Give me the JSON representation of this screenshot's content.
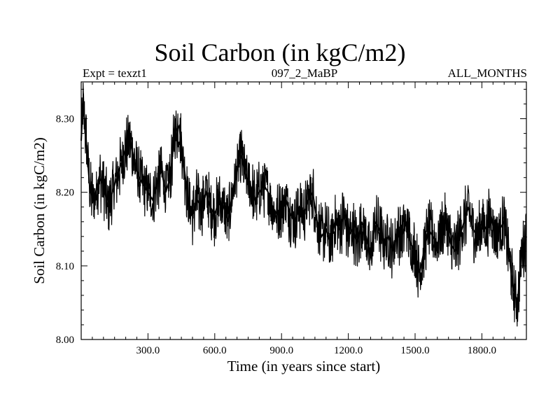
{
  "header": {
    "title": "Soil Carbon (in kgC/m2)",
    "expt": "Expt = texzt1",
    "period": "097_2_MaBP",
    "months": "ALL_MONTHS"
  },
  "chart_data": {
    "type": "line",
    "title": "Soil Carbon (in kgC/m2)",
    "xlabel": "Time (in years since start)",
    "ylabel": "Soil Carbon (in kgC/m2)",
    "xlim": [
      0,
      2000
    ],
    "ylim": [
      8.0,
      8.35
    ],
    "x_ticks": [
      300,
      600,
      900,
      1200,
      1500,
      1800
    ],
    "x_tick_labels": [
      "300.0",
      "600.0",
      "900.0",
      "1200.0",
      "1500.0",
      "1800.0"
    ],
    "y_ticks": [
      8.0,
      8.1,
      8.2,
      8.3
    ],
    "y_tick_labels": [
      "8.00",
      "8.10",
      "8.20",
      "8.30"
    ],
    "line_color": "#000000",
    "series": [
      {
        "name": "Soil Carbon",
        "x": [
          0,
          8,
          20,
          40,
          60,
          80,
          100,
          120,
          140,
          160,
          180,
          200,
          220,
          240,
          260,
          280,
          300,
          320,
          340,
          360,
          380,
          400,
          420,
          440,
          460,
          480,
          500,
          520,
          540,
          560,
          580,
          600,
          620,
          640,
          660,
          680,
          700,
          720,
          740,
          760,
          780,
          800,
          820,
          840,
          860,
          880,
          900,
          920,
          940,
          960,
          980,
          1000,
          1020,
          1040,
          1060,
          1080,
          1100,
          1120,
          1140,
          1160,
          1180,
          1200,
          1220,
          1240,
          1260,
          1280,
          1300,
          1320,
          1340,
          1360,
          1380,
          1400,
          1420,
          1440,
          1460,
          1480,
          1500,
          1520,
          1540,
          1560,
          1580,
          1600,
          1620,
          1640,
          1660,
          1680,
          1700,
          1720,
          1740,
          1760,
          1780,
          1800,
          1820,
          1840,
          1860,
          1880,
          1900,
          1920,
          1940,
          1960,
          1980,
          2000
        ],
        "values": [
          8.27,
          8.32,
          8.28,
          8.2,
          8.19,
          8.22,
          8.21,
          8.18,
          8.2,
          8.22,
          8.24,
          8.26,
          8.27,
          8.24,
          8.22,
          8.21,
          8.2,
          8.19,
          8.21,
          8.23,
          8.2,
          8.22,
          8.28,
          8.29,
          8.24,
          8.19,
          8.17,
          8.19,
          8.18,
          8.2,
          8.18,
          8.17,
          8.19,
          8.18,
          8.16,
          8.2,
          8.23,
          8.25,
          8.22,
          8.21,
          8.19,
          8.2,
          8.21,
          8.2,
          8.18,
          8.17,
          8.18,
          8.19,
          8.17,
          8.16,
          8.18,
          8.17,
          8.19,
          8.2,
          8.16,
          8.14,
          8.15,
          8.13,
          8.16,
          8.15,
          8.17,
          8.14,
          8.15,
          8.13,
          8.16,
          8.14,
          8.11,
          8.16,
          8.15,
          8.13,
          8.14,
          8.12,
          8.15,
          8.14,
          8.16,
          8.13,
          8.12,
          8.09,
          8.12,
          8.15,
          8.14,
          8.13,
          8.15,
          8.16,
          8.13,
          8.12,
          8.14,
          8.16,
          8.18,
          8.15,
          8.14,
          8.16,
          8.15,
          8.17,
          8.14,
          8.15,
          8.16,
          8.12,
          8.07,
          8.05,
          8.12,
          8.14
        ]
      }
    ]
  }
}
